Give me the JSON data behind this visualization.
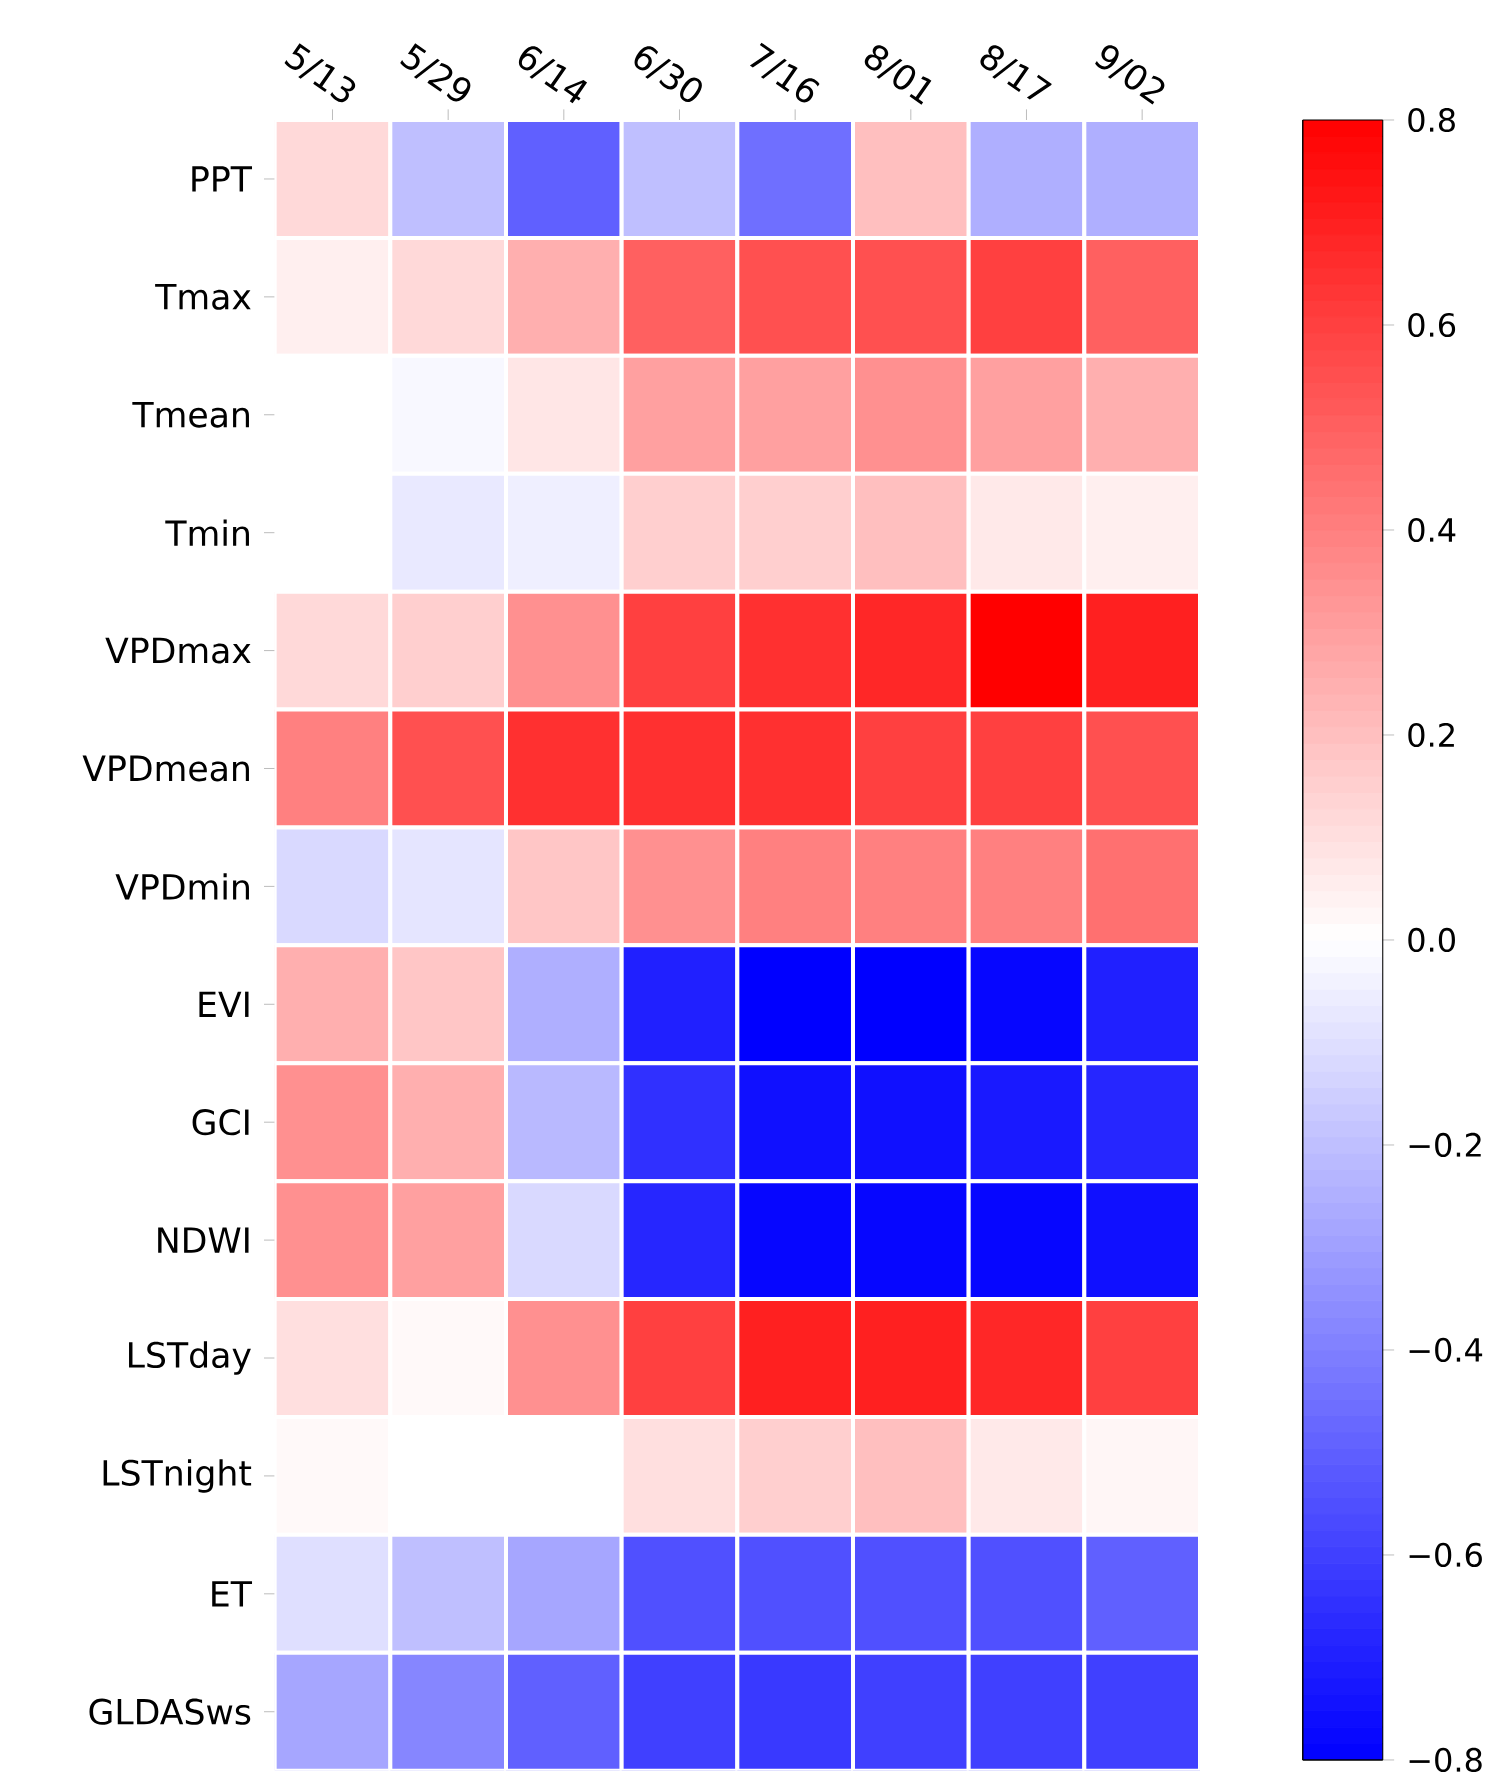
{
  "chart_data": {
    "type": "heatmap",
    "categories": [
      "5/13",
      "5/29",
      "6/14",
      "6/30",
      "7/16",
      "8/01",
      "8/17",
      "9/02"
    ],
    "y_categories": [
      "PPT",
      "Tmax",
      "Tmean",
      "Tmin",
      "VPDmax",
      "VPDmean",
      "VPDmin",
      "EVI",
      "GCI",
      "NDWI",
      "LSTday",
      "LSTnight",
      "ET",
      "GLDASws"
    ],
    "cells": [
      [
        0.12,
        -0.2,
        -0.5,
        -0.2,
        -0.45,
        0.2,
        -0.25,
        -0.25
      ],
      [
        0.05,
        0.12,
        0.25,
        0.5,
        0.55,
        0.55,
        0.6,
        0.5
      ],
      [
        0.0,
        -0.02,
        0.08,
        0.3,
        0.3,
        0.35,
        0.3,
        0.25
      ],
      [
        0.0,
        -0.07,
        -0.05,
        0.15,
        0.15,
        0.2,
        0.07,
        0.05
      ],
      [
        0.12,
        0.15,
        0.35,
        0.6,
        0.65,
        0.68,
        0.8,
        0.7
      ],
      [
        0.4,
        0.55,
        0.65,
        0.65,
        0.65,
        0.6,
        0.6,
        0.55
      ],
      [
        -0.12,
        -0.08,
        0.18,
        0.35,
        0.4,
        0.4,
        0.4,
        0.45
      ],
      [
        0.25,
        0.18,
        -0.25,
        -0.7,
        -0.8,
        -0.8,
        -0.78,
        -0.7
      ],
      [
        0.35,
        0.25,
        -0.22,
        -0.65,
        -0.75,
        -0.75,
        -0.72,
        -0.68
      ],
      [
        0.35,
        0.3,
        -0.12,
        -0.68,
        -0.78,
        -0.78,
        -0.78,
        -0.75
      ],
      [
        0.1,
        0.02,
        0.35,
        0.6,
        0.7,
        0.7,
        0.68,
        0.6
      ],
      [
        0.02,
        0.0,
        0.0,
        0.1,
        0.15,
        0.2,
        0.07,
        0.03
      ],
      [
        -0.1,
        -0.2,
        -0.28,
        -0.55,
        -0.55,
        -0.55,
        -0.55,
        -0.5
      ],
      [
        -0.28,
        -0.38,
        -0.5,
        -0.6,
        -0.62,
        -0.6,
        -0.6,
        -0.6
      ]
    ],
    "clim": [
      -0.8,
      0.8
    ],
    "cticks": [
      {
        "value": -0.8,
        "label": "−0.8"
      },
      {
        "value": -0.6,
        "label": "−0.6"
      },
      {
        "value": -0.4,
        "label": "−0.4"
      },
      {
        "value": -0.2,
        "label": "−0.2"
      },
      {
        "value": 0,
        "label": "0.0"
      },
      0.2,
      0.4,
      0.6,
      0.8
    ]
  }
}
